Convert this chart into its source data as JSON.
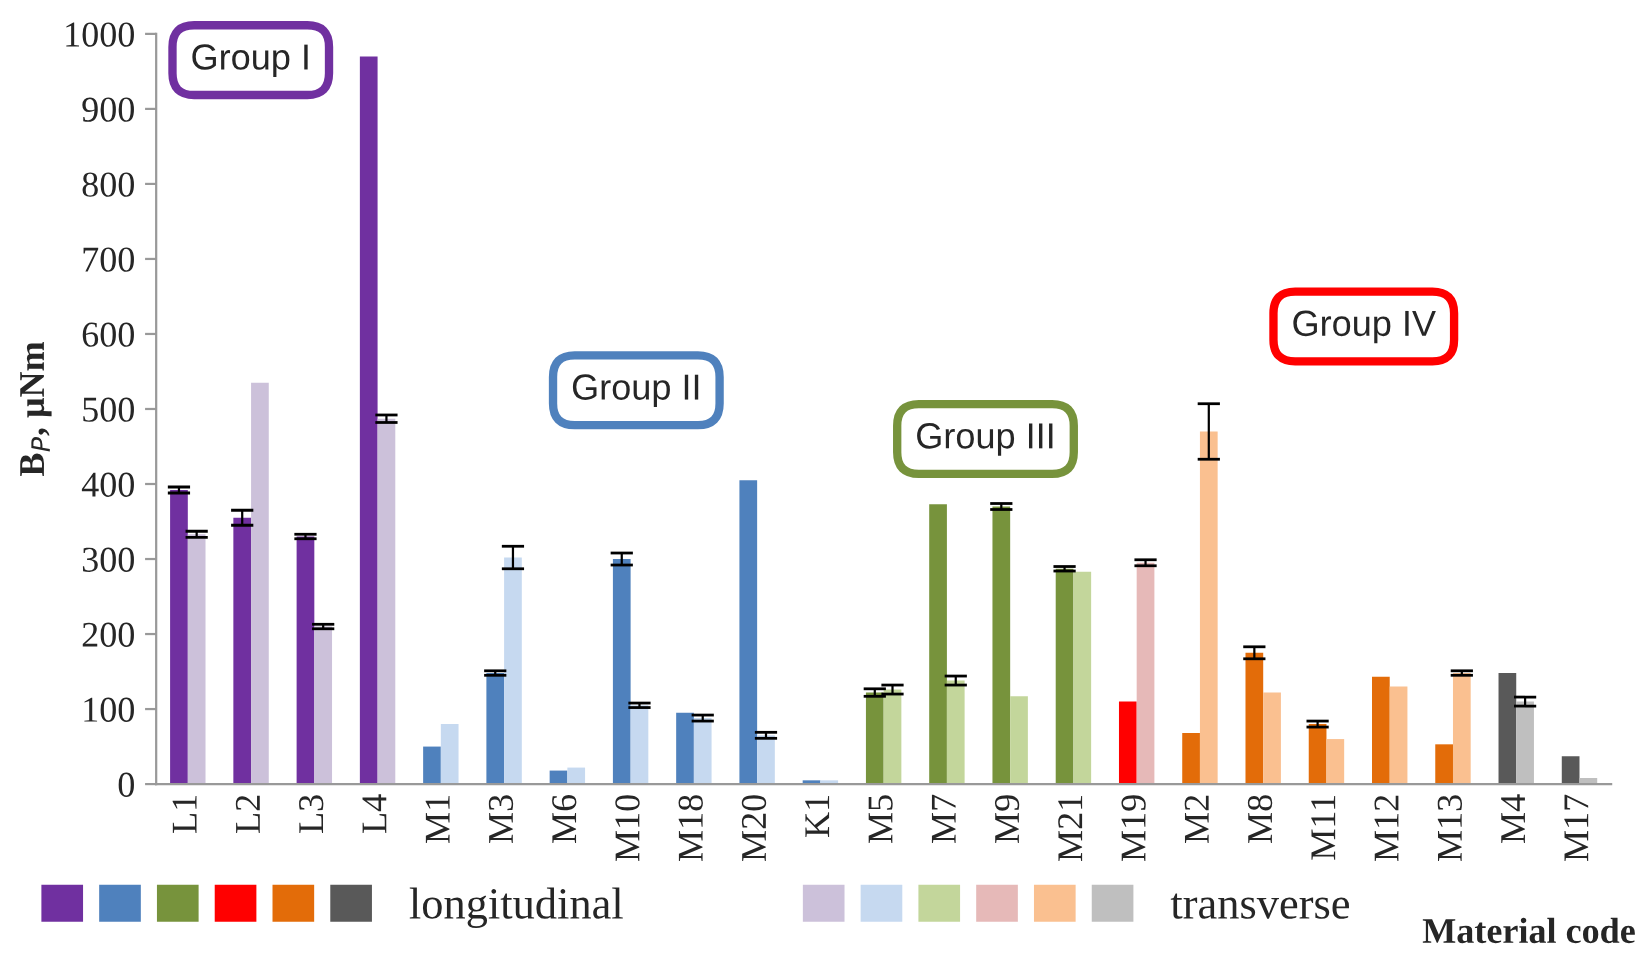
{
  "chart_data": {
    "type": "bar",
    "ylabel": "B$_{P}$, μNm",
    "xlabel": "Material code",
    "categories": [
      "L1",
      "L2",
      "L3",
      "L4",
      "M1",
      "M3",
      "M6",
      "M10",
      "M18",
      "M20",
      "K1",
      "M5",
      "M7",
      "M9",
      "M21",
      "M19",
      "M2",
      "M8",
      "M11",
      "M12",
      "M13",
      "M4",
      "M17"
    ],
    "series": [
      {
        "name": "longitudinal",
        "values": [
          392,
          355,
          330,
          970,
          50,
          148,
          18,
          300,
          95,
          405,
          5,
          122,
          373,
          370,
          287,
          110,
          68,
          175,
          80,
          143,
          53,
          148,
          37
        ],
        "errors": [
          4,
          10,
          3,
          null,
          null,
          3,
          null,
          8,
          null,
          null,
          null,
          5,
          null,
          4,
          3,
          null,
          null,
          8,
          4,
          null,
          null,
          null,
          null
        ],
        "colors": [
          "#7030a0",
          "#7030a0",
          "#7030a0",
          "#7030a0",
          "#4f81bd",
          "#4f81bd",
          "#4f81bd",
          "#4f81bd",
          "#4f81bd",
          "#4f81bd",
          "#4f81bd",
          "#77933c",
          "#77933c",
          "#77933c",
          "#77933c",
          "#ff0000",
          "#e36c09",
          "#e36c09",
          "#e36c09",
          "#e36c09",
          "#e36c09",
          "#595959",
          "#595959"
        ]
      },
      {
        "name": "transverse",
        "values": [
          333,
          535,
          210,
          487,
          80,
          302,
          22,
          105,
          88,
          65,
          5,
          126,
          138,
          117,
          283,
          295,
          470,
          122,
          60,
          130,
          148,
          110,
          8
        ],
        "errors": [
          4,
          null,
          3,
          5,
          null,
          15,
          null,
          3,
          4,
          4,
          null,
          6,
          6,
          null,
          null,
          4,
          37,
          null,
          null,
          null,
          3,
          6,
          null
        ],
        "colors": [
          "#ccc1da",
          "#ccc1da",
          "#ccc1da",
          "#ccc1da",
          "#c6d9f0",
          "#c6d9f0",
          "#c6d9f0",
          "#c6d9f0",
          "#c6d9f0",
          "#c6d9f0",
          "#c6d9f0",
          "#c3d69b",
          "#c3d69b",
          "#c3d69b",
          "#c3d69b",
          "#e6b9b8",
          "#fac090",
          "#fac090",
          "#fac090",
          "#fac090",
          "#fac090",
          "#bfbfbf",
          "#bfbfbf"
        ]
      }
    ],
    "annotations": [
      "Group I",
      "Group II",
      "Group III",
      "Group IV"
    ],
    "ylim": [
      0,
      1000
    ],
    "yticks": [
      0,
      100,
      200,
      300,
      400,
      500,
      600,
      700,
      800,
      900,
      1000
    ],
    "legend": "bottom left"
  }
}
